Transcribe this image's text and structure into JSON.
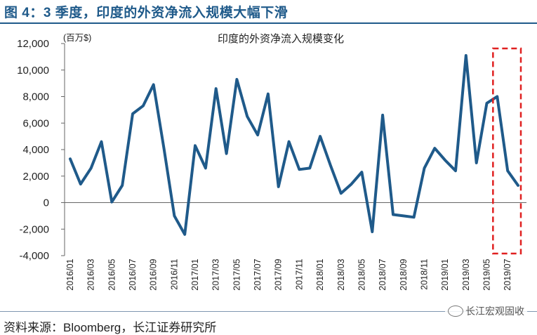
{
  "header": {
    "title": "图 4：3 季度，印度的外资净流入规模大幅下滑"
  },
  "footer": {
    "source": "资料来源：Bloomberg，长江证券研究所",
    "watermark": "长江宏观固收"
  },
  "colors": {
    "line": "#1f5a8a",
    "highlight": "#e02020",
    "rule": "#1f5a8a"
  },
  "chart_data": {
    "type": "line",
    "title": "印度的外资净流入规模变化",
    "ylabel": "(百万$)",
    "ylim": [
      -4000,
      12000
    ],
    "yticks": [
      -4000,
      -2000,
      0,
      2000,
      4000,
      6000,
      8000,
      10000,
      12000
    ],
    "ytick_labels": [
      "-4,000",
      "-2,000",
      "0",
      "2,000",
      "4,000",
      "6,000",
      "8,000",
      "10,000",
      "12,000"
    ],
    "xtick_labels": [
      "2016/01",
      "2016/03",
      "2016/05",
      "2016/07",
      "2016/09",
      "2016/11",
      "2017/01",
      "2017/03",
      "2017/05",
      "2017/07",
      "2017/09",
      "2017/11",
      "2018/01",
      "2018/03",
      "2018/05",
      "2018/07",
      "2018/09",
      "2018/11",
      "2019/01",
      "2019/03",
      "2019/05",
      "2019/07"
    ],
    "x": [
      "2016/01",
      "2016/02",
      "2016/03",
      "2016/04",
      "2016/05",
      "2016/06",
      "2016/07",
      "2016/08",
      "2016/09",
      "2016/10",
      "2016/11",
      "2016/12",
      "2017/01",
      "2017/02",
      "2017/03",
      "2017/04",
      "2017/05",
      "2017/06",
      "2017/07",
      "2017/08",
      "2017/09",
      "2017/10",
      "2017/11",
      "2017/12",
      "2018/01",
      "2018/02",
      "2018/03",
      "2018/04",
      "2018/05",
      "2018/06",
      "2018/07",
      "2018/08",
      "2018/09",
      "2018/10",
      "2018/11",
      "2018/12",
      "2019/01",
      "2019/02",
      "2019/03",
      "2019/04",
      "2019/05",
      "2019/06",
      "2019/07",
      "2019/08"
    ],
    "series": [
      {
        "values": [
          3300,
          1400,
          2600,
          4600,
          50,
          1300,
          6700,
          7300,
          8900,
          4100,
          -1000,
          -2400,
          4300,
          2600,
          8600,
          3700,
          9300,
          6500,
          5100,
          8200,
          1200,
          4600,
          2500,
          2600,
          5000,
          2800,
          700,
          1400,
          2300,
          -2200,
          6600,
          -900,
          -1000,
          -1100,
          2600,
          4100,
          3200,
          2400,
          11100,
          3000,
          7500,
          8000,
          2400,
          1300
        ]
      }
    ],
    "grid": false,
    "highlight": {
      "from": "2019/06",
      "to": "2019/08",
      "style": "red dashed box"
    }
  }
}
